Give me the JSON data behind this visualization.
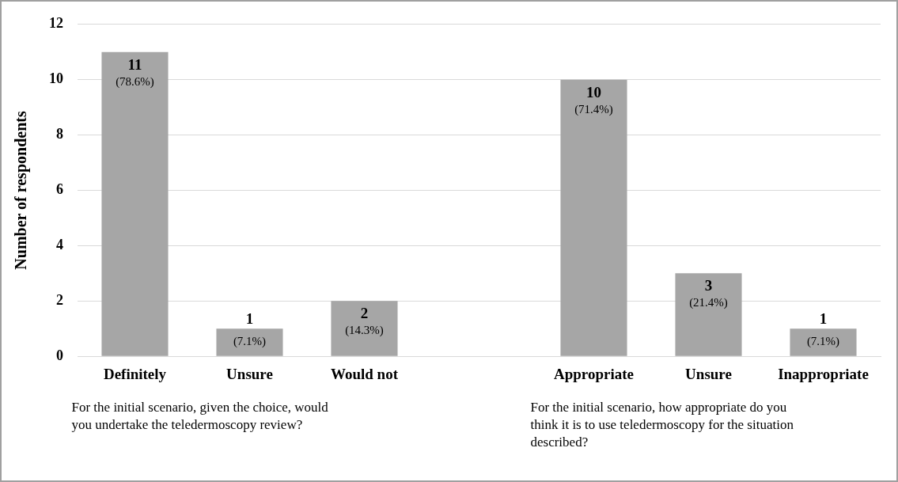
{
  "chart_data": {
    "type": "bar",
    "ylabel": "Number of respondents",
    "categories": [
      "Definitely",
      "Unsure",
      "Would not",
      null,
      "Appropriate",
      "Unsure",
      "Inappropriate"
    ],
    "values": [
      11,
      1,
      2,
      null,
      10,
      3,
      1
    ],
    "color": "#a6a6a6",
    "value_labels": [
      "11 (78.6%)",
      "1 (7.1%)",
      "2 (14.3%)",
      null,
      "10 (71.4%)",
      "3 (21.4%)",
      "1 (7.1%)"
    ],
    "ylim": [
      0,
      12
    ],
    "yticks": [
      0,
      2,
      4,
      6,
      8,
      10,
      12
    ],
    "grid": "y",
    "legend": false,
    "annotations": [
      "For the initial scenario, given the choice, would you undertake the teledermoscopy review?",
      "For the initial scenario, how appropriate do you think it is to use teledermoscopy for the situation described?"
    ]
  }
}
